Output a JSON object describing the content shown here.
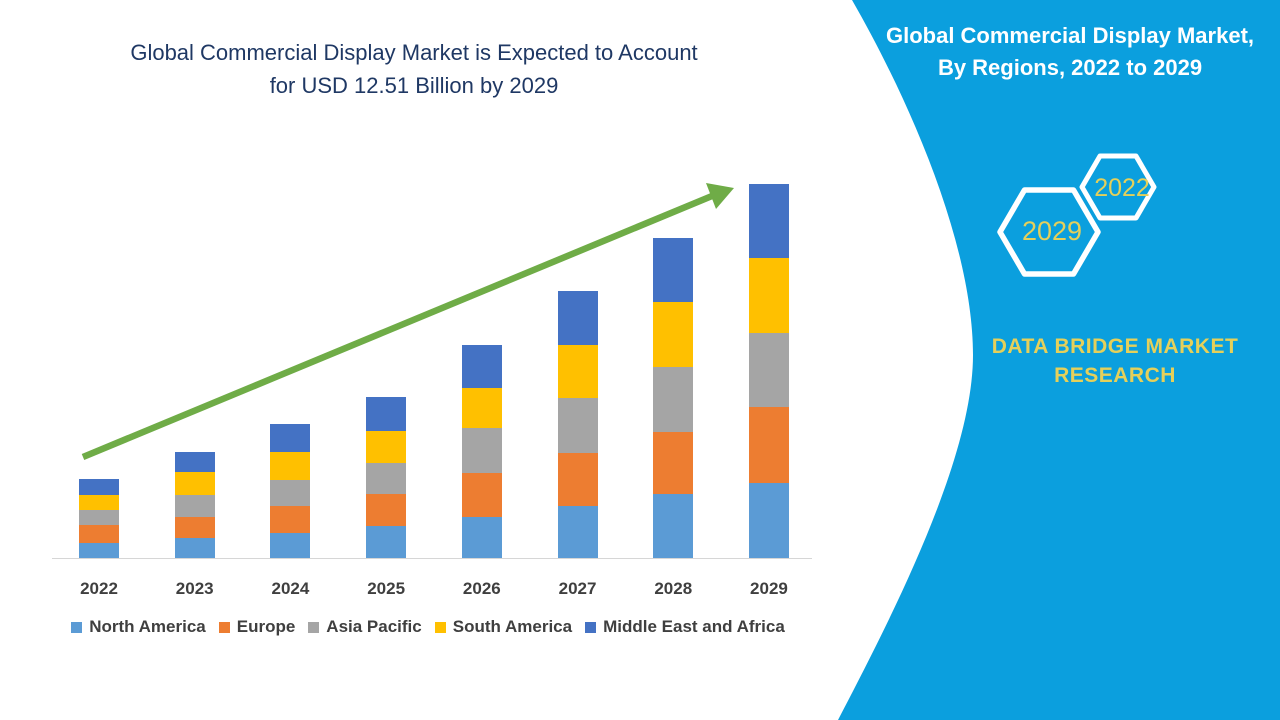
{
  "page": {
    "background": "#FFFFFF"
  },
  "main_title": {
    "line1": "Global Commercial Display Market is Expected to Account",
    "line2": "for USD 12.51 Billion by 2029",
    "color": "#1F3864"
  },
  "side_panel": {
    "background": "#0B9FDE",
    "title_line1": "Global Commercial Display Market,",
    "title_line2": "By Regions, 2022 to 2029",
    "title_color": "#FFFFFF",
    "hexagon_outline_color": "#FFFFFF",
    "accent_text_color": "#E5D05A",
    "hexagons": [
      {
        "label": "2022"
      },
      {
        "label": "2029"
      }
    ],
    "brand": "DATA BRIDGE MARKET RESEARCH"
  },
  "chart_data": {
    "type": "bar",
    "stacked": true,
    "title": "Global Commercial Display Market is Expected to Account for USD 12.51 Billion by 2029",
    "unit": "USD Billion",
    "categories": [
      "2022",
      "2023",
      "2024",
      "2025",
      "2026",
      "2027",
      "2028",
      "2029"
    ],
    "series": [
      {
        "name": "North America",
        "color": "#5B9BD5",
        "values": [
          0.5,
          0.67,
          0.84,
          1.07,
          1.37,
          1.74,
          2.14,
          2.52
        ]
      },
      {
        "name": "Europe",
        "color": "#ED7D31",
        "values": [
          0.59,
          0.7,
          0.9,
          1.07,
          1.47,
          1.77,
          2.07,
          2.54
        ]
      },
      {
        "name": "Asia Pacific",
        "color": "#A5A5A5",
        "values": [
          0.52,
          0.74,
          0.87,
          1.04,
          1.51,
          1.84,
          2.17,
          2.47
        ]
      },
      {
        "name": "South America",
        "color": "#FFC000",
        "values": [
          0.51,
          0.77,
          0.94,
          1.07,
          1.34,
          1.77,
          2.17,
          2.51
        ]
      },
      {
        "name": "Middle East and Africa",
        "color": "#4472C4",
        "values": [
          0.52,
          0.67,
          0.94,
          1.14,
          1.44,
          1.81,
          2.14,
          2.47
        ]
      }
    ],
    "totals_usd_billion": [
      2.64,
      3.55,
      4.49,
      5.39,
      7.13,
      8.93,
      10.69,
      12.51
    ],
    "highlight_value": "USD 12.51 Billion by 2029",
    "trend_arrow_color": "#6FAC47",
    "xlabel": "",
    "ylabel": "",
    "ylim": [
      0,
      13
    ],
    "grid": false,
    "legend_position": "bottom",
    "axis_line_color": "#D6D6D6",
    "label_color": "#3F3F3F"
  }
}
